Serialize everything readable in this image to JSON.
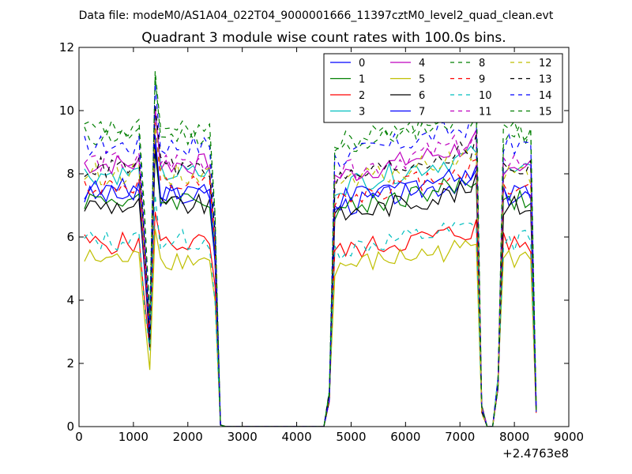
{
  "page": {
    "suptitle": "Data file: modeM0/AS1A04_022T04_9000001666_11397cztM0_level2_quad_clean.evt"
  },
  "chart_data": {
    "type": "line",
    "title": "Quadrant 3 module wise count rates with 100.0s bins.",
    "xlabel": "",
    "ylabel": "",
    "x_offset_label": "+2.4763e8",
    "xlim": [
      0,
      9000
    ],
    "ylim": [
      0,
      12
    ],
    "xticks": [
      0,
      1000,
      2000,
      3000,
      4000,
      5000,
      6000,
      7000,
      8000,
      9000
    ],
    "yticks": [
      0,
      2,
      4,
      6,
      8,
      10,
      12
    ],
    "legend_position": "top-right",
    "legend_columns": 4,
    "x": [
      100,
      200,
      300,
      400,
      500,
      600,
      700,
      800,
      900,
      1000,
      1100,
      1200,
      1300,
      1400,
      1500,
      1600,
      1700,
      1800,
      1900,
      2000,
      2100,
      2200,
      2300,
      2400,
      2500,
      2600,
      2700,
      2800,
      2900,
      3000,
      3100,
      3200,
      3300,
      3400,
      3500,
      3600,
      3700,
      3800,
      3900,
      4000,
      4100,
      4200,
      4300,
      4400,
      4500,
      4600,
      4700,
      4800,
      4900,
      5000,
      5100,
      5200,
      5300,
      5400,
      5500,
      5600,
      5700,
      5800,
      5900,
      6000,
      6100,
      6200,
      6300,
      6400,
      6500,
      6600,
      6700,
      6800,
      6900,
      7000,
      7100,
      7200,
      7300,
      7400,
      7500,
      7600,
      7700,
      7800,
      7900,
      8000,
      8100,
      8200,
      8300,
      8400
    ],
    "segments": [
      {
        "from": 100,
        "to": 2600,
        "mid_offset": 0
      },
      {
        "from": 2700,
        "to": 4500,
        "zero": true
      },
      {
        "from": 4600,
        "to": 7300,
        "mid_offset": 0
      },
      {
        "from": 7400,
        "to": 7700,
        "zero": true
      },
      {
        "from": 7800,
        "to": 8400,
        "mid_offset": 0
      }
    ],
    "series": [
      {
        "name": "0",
        "color": "#0000ff",
        "dash": "solid",
        "level": 7.3
      },
      {
        "name": "1",
        "color": "#007f00",
        "dash": "solid",
        "level": 7.2
      },
      {
        "name": "2",
        "color": "#ff0000",
        "dash": "solid",
        "level": 5.8
      },
      {
        "name": "3",
        "color": "#00bfbf",
        "dash": "solid",
        "level": 8.0
      },
      {
        "name": "4",
        "color": "#bf00bf",
        "dash": "solid",
        "level": 8.3
      },
      {
        "name": "5",
        "color": "#bfbf00",
        "dash": "solid",
        "level": 5.3
      },
      {
        "name": "6",
        "color": "#000000",
        "dash": "solid",
        "level": 7.0
      },
      {
        "name": "7",
        "color": "#0000ff",
        "dash": "solid",
        "level": 7.5
      },
      {
        "name": "8",
        "color": "#007f00",
        "dash": "dashed",
        "level": 9.2
      },
      {
        "name": "9",
        "color": "#ff0000",
        "dash": "dashed",
        "level": 7.6
      },
      {
        "name": "10",
        "color": "#00bfbf",
        "dash": "dashed",
        "level": 5.9
      },
      {
        "name": "11",
        "color": "#bf00bf",
        "dash": "dashed",
        "level": 8.4
      },
      {
        "name": "12",
        "color": "#bfbf00",
        "dash": "dashed",
        "level": 8.0
      },
      {
        "name": "13",
        "color": "#000000",
        "dash": "dashed",
        "level": 8.2
      },
      {
        "name": "14",
        "color": "#0000ff",
        "dash": "dashed",
        "level": 8.9
      },
      {
        "name": "15",
        "color": "#007f00",
        "dash": "dashed",
        "level": 9.4
      }
    ]
  }
}
